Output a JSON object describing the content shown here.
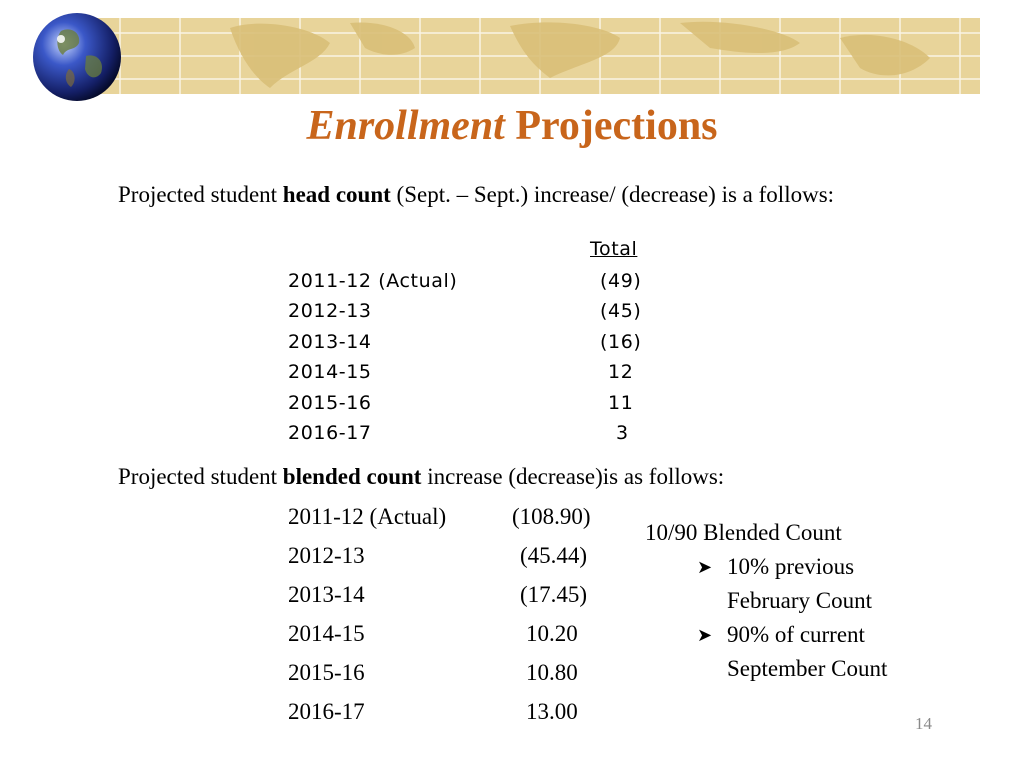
{
  "title": {
    "italic": "Enrollment",
    "rest": "Projections"
  },
  "intro1": {
    "pre": "Projected student ",
    "bold": "head count",
    "post": " (Sept. – Sept.) increase/ (decrease) is a follows:"
  },
  "head_table": {
    "header": "Total",
    "rows": [
      {
        "year": "2011-12 (Actual)",
        "value": "(49)"
      },
      {
        "year": "2012-13",
        "value": "(45)"
      },
      {
        "year": "2013-14",
        "value": "(16)"
      },
      {
        "year": "2014-15",
        "value": "12"
      },
      {
        "year": "2015-16",
        "value": "11"
      },
      {
        "year": "2016-17",
        "value": "3"
      }
    ]
  },
  "intro2": {
    "pre": "Projected student ",
    "bold": "blended count",
    "post": " increase (decrease)is as follows:"
  },
  "blended_table": {
    "rows": [
      {
        "year": "2011-12 (Actual)",
        "value": "(108.90)"
      },
      {
        "year": "2012-13",
        "value": "(45.44)"
      },
      {
        "year": "2013-14",
        "value": "(17.45)"
      },
      {
        "year": "2014-15",
        "value": "10.20"
      },
      {
        "year": "2015-16",
        "value": "10.80"
      },
      {
        "year": "2016-17",
        "value": "13.00"
      }
    ]
  },
  "side_note": {
    "heading": "10/90 Blended Count",
    "bullets": [
      {
        "line1": "10% previous",
        "line2": "February Count"
      },
      {
        "line1": "90% of current",
        "line2": "September Count"
      }
    ]
  },
  "page_number": "14",
  "colors": {
    "title": "#c8651b",
    "banner": "#e8d49a"
  },
  "icons": {
    "globe": "globe-icon",
    "bullet": "arrow-bullet-icon"
  }
}
